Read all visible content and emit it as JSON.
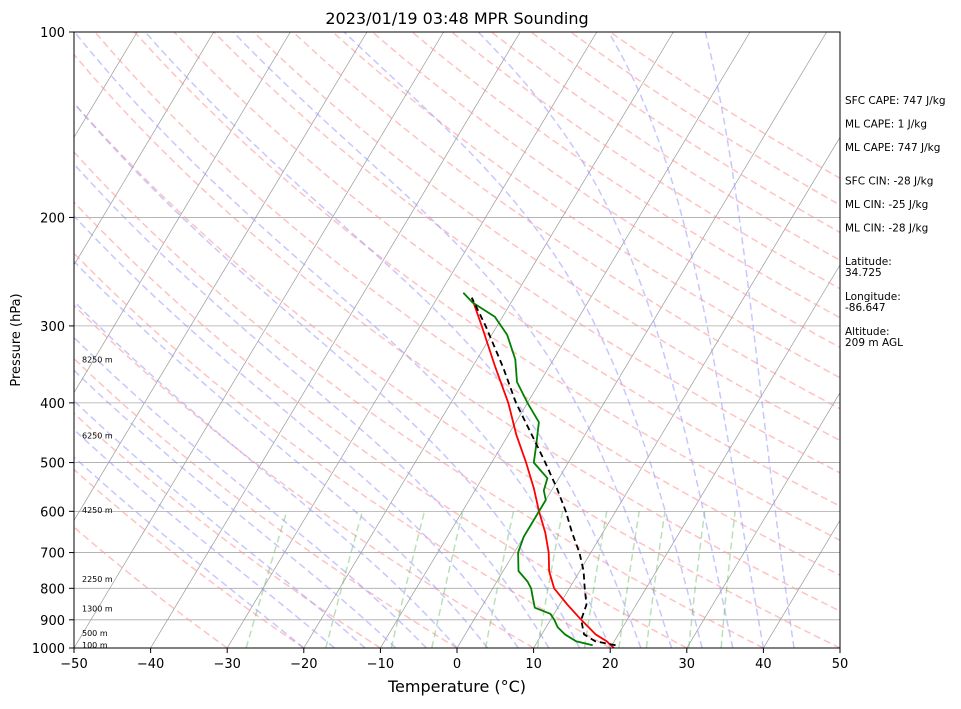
{
  "chart_data": {
    "type": "line",
    "title": "2023/01/19 03:48 MPR Sounding",
    "xlabel": "Temperature (°C)",
    "ylabel": "Pressure (hPa)",
    "xlim": [
      -50,
      50
    ],
    "ylim": [
      1000,
      100
    ],
    "y_scale": "log",
    "grid": true,
    "x_ticks": [
      -50,
      -40,
      -30,
      -20,
      -10,
      0,
      10,
      20,
      30,
      40,
      50
    ],
    "x_tick_labels": [
      "−50",
      "−40",
      "−30",
      "−20",
      "−10",
      "0",
      "10",
      "20",
      "30",
      "40",
      "50"
    ],
    "y_ticks": [
      100,
      200,
      300,
      400,
      500,
      600,
      700,
      800,
      900,
      1000
    ],
    "y_tick_labels": [
      "100",
      "200",
      "300",
      "400",
      "500",
      "600",
      "700",
      "800",
      "900",
      "1000"
    ],
    "colors": {
      "temperature": "#ff0000",
      "dewpoint": "#008000",
      "parcel": "#000000",
      "dry_adiabat": "#ff9999",
      "moist_adiabat": "#9999ff",
      "mixing_ratio": "#66bb66",
      "isotherm": "#999999",
      "isobar": "#aaaaaa"
    },
    "series": [
      {
        "key": "temperature",
        "points": [
          [
            1000,
            20.5
          ],
          [
            975,
            19
          ],
          [
            950,
            17
          ],
          [
            900,
            14
          ],
          [
            850,
            11
          ],
          [
            800,
            8
          ],
          [
            750,
            6
          ],
          [
            700,
            4.5
          ],
          [
            650,
            2.5
          ],
          [
            600,
            0
          ],
          [
            550,
            -2.5
          ],
          [
            500,
            -5.5
          ],
          [
            450,
            -9
          ],
          [
            400,
            -12.5
          ],
          [
            350,
            -17
          ],
          [
            300,
            -22
          ],
          [
            270,
            -25.5
          ]
        ]
      },
      {
        "key": "dewpoint",
        "points": [
          [
            990,
            17.5
          ],
          [
            975,
            15
          ],
          [
            950,
            13
          ],
          [
            925,
            11.5
          ],
          [
            900,
            10.5
          ],
          [
            880,
            9.5
          ],
          [
            860,
            7
          ],
          [
            830,
            6
          ],
          [
            800,
            5
          ],
          [
            780,
            4
          ],
          [
            750,
            2
          ],
          [
            700,
            0.5
          ],
          [
            660,
            0
          ],
          [
            630,
            0
          ],
          [
            600,
            0
          ],
          [
            575,
            0
          ],
          [
            555,
            -1
          ],
          [
            530,
            -1.5
          ],
          [
            500,
            -4.5
          ],
          [
            470,
            -5.5
          ],
          [
            430,
            -7
          ],
          [
            400,
            -10
          ],
          [
            370,
            -13
          ],
          [
            340,
            -15
          ],
          [
            310,
            -18
          ],
          [
            290,
            -21
          ],
          [
            275,
            -25
          ],
          [
            265,
            -27
          ]
        ]
      },
      {
        "key": "parcel",
        "points": [
          [
            990,
            20.5
          ],
          [
            975,
            17.5
          ],
          [
            950,
            15.5
          ],
          [
            900,
            14
          ],
          [
            850,
            13.5
          ],
          [
            800,
            12
          ],
          [
            750,
            10.5
          ],
          [
            700,
            8.5
          ],
          [
            650,
            6
          ],
          [
            600,
            3.5
          ],
          [
            550,
            0.5
          ],
          [
            500,
            -3
          ],
          [
            450,
            -7
          ],
          [
            400,
            -11.5
          ],
          [
            350,
            -16
          ],
          [
            300,
            -21.5
          ],
          [
            270,
            -25.5
          ]
        ]
      }
    ],
    "height_labels": [
      {
        "text": "100 m",
        "pressure": 988
      },
      {
        "text": "500 m",
        "pressure": 946
      },
      {
        "text": "1300 m",
        "pressure": 862
      },
      {
        "text": "2250 m",
        "pressure": 772
      },
      {
        "text": "4250 m",
        "pressure": 597
      },
      {
        "text": "6250 m",
        "pressure": 452
      },
      {
        "text": "8250 m",
        "pressure": 340
      }
    ],
    "annotations": [
      {
        "id": "sfc-cape",
        "lines": [
          "SFC CAPE: 747 J/kg"
        ]
      },
      {
        "id": "ml-cape-1",
        "lines": [
          "ML CAPE: 1 J/kg"
        ]
      },
      {
        "id": "ml-cape-2",
        "lines": [
          "ML CAPE: 747 J/kg"
        ]
      },
      {
        "id": "sfc-cin",
        "lines": [
          "SFC CIN: -28 J/kg"
        ]
      },
      {
        "id": "ml-cin-1",
        "lines": [
          "ML CIN: -25 J/kg"
        ]
      },
      {
        "id": "ml-cin-2",
        "lines": [
          "ML CIN: -28 J/kg"
        ]
      },
      {
        "id": "latitude",
        "lines": [
          "Latitude:",
          "34.725"
        ]
      },
      {
        "id": "longitude",
        "lines": [
          "Longitude:",
          "-86.647"
        ]
      },
      {
        "id": "altitude",
        "lines": [
          "Altitude:",
          "209 m AGL"
        ]
      }
    ]
  }
}
